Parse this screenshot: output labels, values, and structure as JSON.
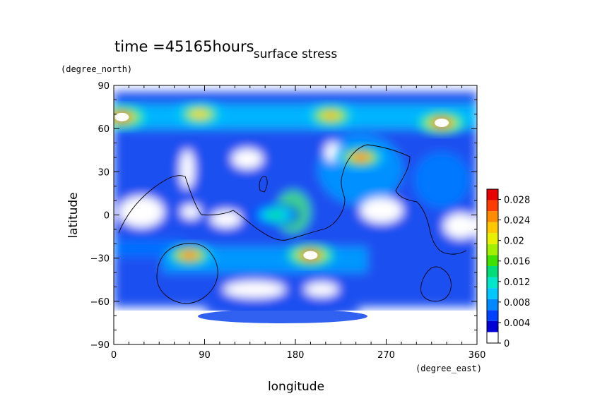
{
  "chart_data": {
    "type": "heatmap",
    "title": "surface stress",
    "time_label": "time =45165hours",
    "xlabel": "longitude",
    "ylabel": "latitude",
    "x_unit": "(degree_east)",
    "y_unit": "(degree_north)",
    "xlim": [
      0,
      360
    ],
    "ylim": [
      -90,
      90
    ],
    "x_ticks": [
      "0",
      "90",
      "180",
      "270",
      "360"
    ],
    "y_ticks": [
      "90",
      "60",
      "30",
      "0",
      "−30",
      "−60",
      "−90"
    ],
    "x_tick_values": [
      0,
      90,
      180,
      270,
      360
    ],
    "y_tick_values": [
      90,
      60,
      30,
      0,
      -30,
      -60,
      -90
    ],
    "colorbar": {
      "range": [
        0,
        0.03
      ],
      "tick_values": [
        0,
        0.004,
        0.008,
        0.012,
        0.016,
        0.02,
        0.024,
        0.028
      ],
      "tick_labels": [
        "0",
        "0.004",
        "0.008",
        "0.012",
        "0.016",
        "0.02",
        "0.024",
        "0.028"
      ],
      "colors": [
        "#ffffff",
        "#0000d6",
        "#0040ff",
        "#0088ff",
        "#00c8ff",
        "#00e6c8",
        "#00dc78",
        "#40e000",
        "#a0f000",
        "#e6f000",
        "#ffc800",
        "#ff8c00",
        "#ff3c00",
        "#e60000"
      ]
    },
    "grid": false,
    "peaks": [
      {
        "lon": 8,
        "lat": 68,
        "value": 0.03
      },
      {
        "lon": 85,
        "lat": 70,
        "value": 0.024
      },
      {
        "lon": 215,
        "lat": 69,
        "value": 0.026
      },
      {
        "lon": 325,
        "lat": 64,
        "value": 0.03
      },
      {
        "lon": 245,
        "lat": 40,
        "value": 0.028
      },
      {
        "lon": 75,
        "lat": -28,
        "value": 0.028
      },
      {
        "lon": 195,
        "lat": -28,
        "value": 0.03
      },
      {
        "lon": 160,
        "lat": 0,
        "value": 0.014
      }
    ]
  }
}
